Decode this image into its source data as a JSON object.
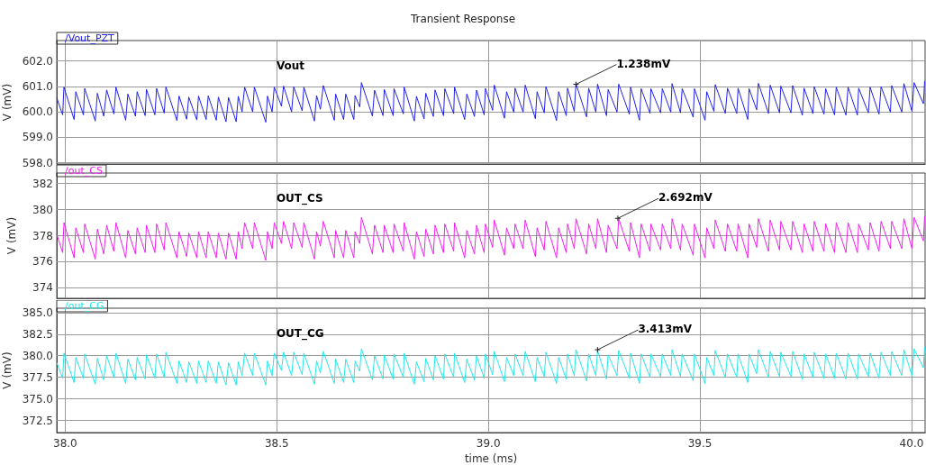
{
  "chart_data": [
    {
      "type": "line",
      "title": "Transient Response",
      "ylabel": "V (mV)",
      "legend": "top left",
      "grid": true,
      "marker": "none",
      "tick_labels": "y",
      "xlim": [
        37.98,
        40.032
      ],
      "ylim": [
        597.95,
        602.8
      ],
      "yticks": [
        {
          "value": 598,
          "label": "598.0"
        },
        {
          "value": 599,
          "label": "599.0"
        },
        {
          "value": 600,
          "label": "600.0"
        },
        {
          "value": 601,
          "label": "601.0"
        },
        {
          "value": 602,
          "label": "602.0"
        }
      ],
      "annotations": [
        "Vout",
        {
          "text": "1.238mV",
          "x": 39.207,
          "y": 601.08
        }
      ],
      "x": [
        37.98,
        37.994,
        37.997,
        38.021,
        38.025,
        38.043,
        38.046,
        38.071,
        38.076,
        38.091,
        38.098,
        38.115,
        38.12,
        38.143,
        38.148,
        38.166,
        38.17,
        38.189,
        38.192,
        38.212,
        38.216,
        38.234,
        38.238,
        38.264,
        38.269,
        38.287,
        38.292,
        38.311,
        38.315,
        38.333,
        38.338,
        38.357,
        38.362,
        38.38,
        38.386,
        38.404,
        38.409,
        38.418,
        38.424,
        38.443,
        38.447,
        38.474,
        38.478,
        38.489,
        38.494,
        38.511,
        38.516,
        38.535,
        38.54,
        38.56,
        38.564,
        38.589,
        38.594,
        38.603,
        38.61,
        38.636,
        38.639,
        38.658,
        38.663,
        38.682,
        38.685,
        38.696,
        38.7,
        38.726,
        38.731,
        38.751,
        38.754,
        38.775,
        38.777,
        38.799,
        38.801,
        38.825,
        38.83,
        38.848,
        38.852,
        38.87,
        38.874,
        38.894,
        38.897,
        38.918,
        38.92,
        38.944,
        38.949,
        38.967,
        38.972,
        38.99,
        38.993,
        39.01,
        39.014,
        39.038,
        39.043,
        39.06,
        39.063,
        39.082,
        39.087,
        39.111,
        39.115,
        39.132,
        39.136,
        39.161,
        39.166,
        39.184,
        39.187,
        39.203,
        39.207,
        39.232,
        39.237,
        39.254,
        39.258,
        39.279,
        39.283,
        39.304,
        39.308,
        39.333,
        39.336,
        39.357,
        39.361,
        39.382,
        39.384,
        39.407,
        39.411,
        39.431,
        39.434,
        39.454,
        39.458,
        39.484,
        39.487,
        39.512,
        39.516,
        39.533,
        39.536,
        39.56,
        39.565,
        39.587,
        39.59,
        39.613,
        39.616,
        39.634,
        39.638,
        39.662,
        39.666,
        39.688,
        39.691,
        39.715,
        39.719,
        39.742,
        39.746,
        39.767,
        39.77,
        39.793,
        39.797,
        39.818,
        39.822,
        39.845,
        39.85,
        39.872,
        39.875,
        39.898,
        39.902,
        39.923,
        39.928,
        39.95,
        39.953,
        39.977,
        39.982,
        40.001,
        40.006,
        40.028,
        40.031
      ],
      "series": [
        {
          "name": "/Vout_PZT",
          "color": "#2020ee",
          "values": [
            600.55,
            599.88,
            600.97,
            599.7,
            600.79,
            599.88,
            600.92,
            599.64,
            600.73,
            599.83,
            600.86,
            599.92,
            600.97,
            599.67,
            600.7,
            599.83,
            600.79,
            599.85,
            600.88,
            599.88,
            600.92,
            599.95,
            600.98,
            599.66,
            600.62,
            599.71,
            600.58,
            599.68,
            600.62,
            599.7,
            600.63,
            599.67,
            600.58,
            599.61,
            600.56,
            599.61,
            600.61,
            600.0,
            600.97,
            600.0,
            600.97,
            599.59,
            600.62,
            600.0,
            600.97,
            600.22,
            601.01,
            600.0,
            600.98,
            600.04,
            600.97,
            599.64,
            600.64,
            600.1,
            601.03,
            599.67,
            600.7,
            599.7,
            600.7,
            599.7,
            600.64,
            600.19,
            601.15,
            599.83,
            600.85,
            599.85,
            600.88,
            599.85,
            600.91,
            599.92,
            600.97,
            599.64,
            600.61,
            599.73,
            600.73,
            599.82,
            600.86,
            599.85,
            600.91,
            599.93,
            600.97,
            599.7,
            600.7,
            599.82,
            600.85,
            599.88,
            600.92,
            600.06,
            601.05,
            599.75,
            600.79,
            599.99,
            600.93,
            599.99,
            601.05,
            599.73,
            600.79,
            599.96,
            600.99,
            599.66,
            600.79,
            599.85,
            600.93,
            600.02,
            601.11,
            599.8,
            600.93,
            599.99,
            601.09,
            599.85,
            600.88,
            599.99,
            601.09,
            599.91,
            600.97,
            599.67,
            600.91,
            599.94,
            600.91,
            599.96,
            600.91,
            599.99,
            601.11,
            599.96,
            600.91,
            599.79,
            600.91,
            599.67,
            600.79,
            600.02,
            601.07,
            599.94,
            600.93,
            599.94,
            600.93,
            599.7,
            600.91,
            600.08,
            601.12,
            599.94,
            601.05,
            599.96,
            601.01,
            599.96,
            601.03,
            599.87,
            600.93,
            599.93,
            600.99,
            599.91,
            600.91,
            599.88,
            600.97,
            599.87,
            600.97,
            599.87,
            600.93,
            599.96,
            600.97,
            599.91,
            600.99,
            599.99,
            601.03,
            599.99,
            601.11,
            600.02,
            601.15,
            600.32,
            601.21
          ]
        }
      ]
    },
    {
      "type": "line",
      "ylabel": "V (mV)",
      "legend": "top left",
      "grid": true,
      "marker": "none",
      "tick_labels": "y",
      "xlim": [
        37.98,
        40.032
      ],
      "ylim": [
        373.2,
        382.8
      ],
      "yticks": [
        374,
        376,
        378,
        380,
        382
      ],
      "annotations": [
        "OUT_CS",
        {
          "text": "2.692mV",
          "x": 39.306,
          "y": 379.33
        }
      ],
      "x": [
        37.98,
        37.994,
        37.997,
        38.021,
        38.025,
        38.043,
        38.046,
        38.071,
        38.076,
        38.091,
        38.098,
        38.115,
        38.12,
        38.143,
        38.148,
        38.166,
        38.17,
        38.189,
        38.192,
        38.212,
        38.216,
        38.234,
        38.238,
        38.264,
        38.269,
        38.287,
        38.292,
        38.311,
        38.315,
        38.333,
        38.338,
        38.357,
        38.362,
        38.38,
        38.386,
        38.404,
        38.409,
        38.418,
        38.424,
        38.443,
        38.447,
        38.474,
        38.478,
        38.489,
        38.494,
        38.511,
        38.516,
        38.535,
        38.54,
        38.56,
        38.564,
        38.589,
        38.594,
        38.603,
        38.61,
        38.636,
        38.639,
        38.658,
        38.663,
        38.682,
        38.685,
        38.696,
        38.7,
        38.726,
        38.731,
        38.751,
        38.754,
        38.775,
        38.777,
        38.799,
        38.801,
        38.825,
        38.83,
        38.848,
        38.852,
        38.87,
        38.874,
        38.894,
        38.897,
        38.918,
        38.92,
        38.944,
        38.949,
        38.967,
        38.972,
        38.99,
        38.993,
        39.01,
        39.014,
        39.038,
        39.043,
        39.06,
        39.063,
        39.082,
        39.087,
        39.111,
        39.115,
        39.132,
        39.136,
        39.161,
        39.166,
        39.184,
        39.187,
        39.203,
        39.207,
        39.232,
        39.237,
        39.254,
        39.258,
        39.279,
        39.283,
        39.304,
        39.308,
        39.333,
        39.336,
        39.357,
        39.361,
        39.382,
        39.384,
        39.407,
        39.411,
        39.431,
        39.434,
        39.454,
        39.458,
        39.484,
        39.487,
        39.512,
        39.516,
        39.533,
        39.536,
        39.56,
        39.565,
        39.587,
        39.59,
        39.613,
        39.616,
        39.634,
        39.638,
        39.662,
        39.666,
        39.688,
        39.691,
        39.715,
        39.719,
        39.742,
        39.746,
        39.767,
        39.77,
        39.793,
        39.797,
        39.818,
        39.822,
        39.845,
        39.85,
        39.872,
        39.875,
        39.898,
        39.902,
        39.923,
        39.928,
        39.95,
        39.953,
        39.977,
        39.982,
        40.001,
        40.006,
        40.028,
        40.031
      ],
      "series": [
        {
          "name": "/out_CS",
          "color": "#f020f0",
          "values": [
            378.1,
            376.7,
            379.0,
            376.3,
            378.6,
            376.7,
            378.9,
            376.2,
            378.5,
            376.6,
            378.8,
            376.8,
            379.0,
            376.3,
            378.4,
            376.6,
            378.6,
            376.7,
            378.8,
            376.7,
            378.9,
            376.9,
            379.0,
            376.3,
            378.3,
            376.4,
            378.2,
            376.3,
            378.3,
            376.3,
            378.3,
            376.3,
            378.2,
            376.2,
            378.2,
            376.2,
            378.3,
            377.0,
            379.0,
            377.0,
            379.0,
            376.1,
            378.3,
            377.0,
            379.0,
            377.4,
            379.1,
            377.0,
            379.0,
            377.1,
            379.0,
            376.2,
            378.3,
            377.2,
            379.1,
            376.3,
            378.4,
            376.3,
            378.4,
            376.3,
            378.3,
            377.4,
            379.4,
            376.6,
            378.8,
            376.7,
            378.8,
            376.7,
            378.9,
            376.8,
            379.0,
            376.2,
            378.3,
            376.4,
            378.5,
            376.6,
            378.8,
            376.7,
            378.9,
            376.8,
            379.0,
            376.3,
            378.4,
            376.6,
            378.8,
            376.7,
            378.9,
            377.1,
            379.2,
            376.5,
            378.6,
            377.0,
            378.9,
            377.0,
            379.2,
            376.4,
            378.6,
            376.9,
            379.1,
            376.3,
            378.6,
            376.7,
            378.9,
            377.0,
            379.3,
            376.6,
            378.9,
            377.0,
            379.3,
            376.7,
            378.8,
            377.0,
            379.3,
            376.8,
            379.0,
            376.3,
            378.9,
            376.8,
            378.9,
            376.9,
            378.9,
            377.0,
            379.3,
            376.9,
            378.9,
            376.5,
            378.9,
            376.3,
            378.6,
            377.0,
            379.2,
            376.8,
            378.9,
            376.8,
            378.9,
            376.3,
            378.9,
            377.1,
            379.3,
            376.8,
            379.2,
            376.9,
            379.1,
            376.9,
            379.1,
            376.7,
            378.9,
            376.8,
            379.1,
            376.8,
            378.9,
            376.7,
            379.0,
            376.7,
            379.0,
            376.7,
            378.9,
            376.9,
            379.0,
            376.8,
            379.1,
            377.0,
            379.1,
            377.0,
            379.3,
            377.0,
            379.4,
            377.6,
            379.5
          ]
        }
      ]
    },
    {
      "type": "line",
      "xlabel": "time (ms)",
      "ylabel": "V (mV)",
      "legend": "top left",
      "grid": true,
      "marker": "none",
      "xlim": [
        37.98,
        40.032
      ],
      "xticks": [
        {
          "value": 38,
          "label": "38.0"
        },
        38.5,
        {
          "value": 39,
          "label": "39.0"
        },
        39.5,
        {
          "value": 40,
          "label": "40.0"
        }
      ],
      "ylim": [
        371.1,
        385.5
      ],
      "yticks": [
        372.5,
        {
          "value": 375,
          "label": "375.0"
        },
        377.5,
        {
          "value": 380,
          "label": "380.0"
        },
        382.5,
        {
          "value": 385,
          "label": "385.0"
        }
      ],
      "annotations": [
        "OUT_CG",
        {
          "text": "3.413mV",
          "x": 39.258,
          "y": 380.69
        }
      ],
      "x": [
        37.98,
        37.994,
        37.997,
        38.021,
        38.025,
        38.043,
        38.046,
        38.071,
        38.076,
        38.091,
        38.098,
        38.115,
        38.12,
        38.143,
        38.148,
        38.166,
        38.17,
        38.189,
        38.192,
        38.212,
        38.216,
        38.234,
        38.238,
        38.264,
        38.269,
        38.287,
        38.292,
        38.311,
        38.315,
        38.333,
        38.338,
        38.357,
        38.362,
        38.38,
        38.386,
        38.404,
        38.409,
        38.418,
        38.424,
        38.443,
        38.447,
        38.474,
        38.478,
        38.489,
        38.494,
        38.511,
        38.516,
        38.535,
        38.54,
        38.56,
        38.564,
        38.589,
        38.594,
        38.603,
        38.61,
        38.636,
        38.639,
        38.658,
        38.663,
        38.682,
        38.685,
        38.696,
        38.7,
        38.726,
        38.731,
        38.751,
        38.754,
        38.775,
        38.777,
        38.799,
        38.801,
        38.825,
        38.83,
        38.848,
        38.852,
        38.87,
        38.874,
        38.894,
        38.897,
        38.918,
        38.92,
        38.944,
        38.949,
        38.967,
        38.972,
        38.99,
        38.993,
        39.01,
        39.014,
        39.038,
        39.043,
        39.06,
        39.063,
        39.082,
        39.087,
        39.111,
        39.115,
        39.132,
        39.136,
        39.161,
        39.166,
        39.184,
        39.187,
        39.203,
        39.207,
        39.232,
        39.237,
        39.254,
        39.258,
        39.279,
        39.283,
        39.304,
        39.308,
        39.333,
        39.336,
        39.357,
        39.361,
        39.382,
        39.384,
        39.407,
        39.411,
        39.431,
        39.434,
        39.454,
        39.458,
        39.484,
        39.487,
        39.512,
        39.516,
        39.533,
        39.536,
        39.56,
        39.565,
        39.587,
        39.59,
        39.613,
        39.616,
        39.634,
        39.638,
        39.662,
        39.666,
        39.688,
        39.691,
        39.715,
        39.719,
        39.742,
        39.746,
        39.767,
        39.77,
        39.793,
        39.797,
        39.818,
        39.822,
        39.845,
        39.85,
        39.872,
        39.875,
        39.898,
        39.902,
        39.923,
        39.928,
        39.95,
        39.953,
        39.977,
        39.982,
        40.001,
        40.006,
        40.028,
        40.031
      ],
      "series": [
        {
          "name": "/out_CG",
          "color": "#22e8e8",
          "values": [
            379.2,
            377.4,
            380.3,
            376.9,
            379.8,
            377.4,
            380.2,
            376.7,
            379.7,
            377.2,
            380.0,
            377.5,
            380.3,
            376.8,
            379.6,
            377.2,
            379.8,
            377.3,
            380.1,
            377.4,
            380.2,
            377.5,
            380.4,
            376.8,
            379.4,
            376.9,
            379.3,
            376.8,
            379.4,
            376.9,
            379.4,
            376.8,
            379.3,
            376.6,
            379.2,
            376.6,
            379.3,
            377.7,
            380.3,
            377.7,
            380.3,
            376.6,
            379.4,
            377.7,
            380.3,
            378.3,
            380.4,
            377.7,
            380.4,
            377.8,
            380.3,
            376.7,
            379.4,
            378.0,
            380.5,
            376.8,
            379.6,
            376.9,
            379.6,
            376.9,
            379.4,
            378.2,
            380.8,
            377.2,
            380.0,
            377.3,
            380.1,
            377.3,
            380.2,
            377.5,
            380.3,
            376.7,
            379.3,
            377.0,
            379.7,
            377.2,
            380.0,
            377.3,
            380.2,
            377.5,
            380.3,
            376.9,
            379.6,
            377.2,
            380.0,
            377.4,
            380.2,
            377.8,
            380.5,
            377.0,
            379.8,
            377.7,
            380.2,
            377.7,
            380.5,
            377.0,
            379.8,
            377.6,
            380.4,
            376.8,
            379.8,
            377.3,
            380.2,
            377.7,
            380.7,
            377.1,
            380.2,
            377.7,
            380.6,
            377.3,
            380.1,
            377.7,
            380.6,
            377.4,
            380.3,
            376.8,
            380.2,
            377.5,
            380.2,
            377.6,
            380.2,
            377.7,
            380.7,
            377.6,
            380.2,
            377.1,
            380.2,
            376.8,
            379.8,
            377.7,
            380.6,
            377.5,
            380.2,
            377.5,
            380.2,
            376.9,
            380.2,
            377.9,
            380.7,
            377.5,
            380.5,
            377.6,
            380.4,
            377.6,
            380.5,
            377.3,
            380.2,
            377.5,
            380.4,
            377.4,
            380.2,
            377.4,
            380.3,
            377.3,
            380.3,
            377.3,
            380.2,
            377.6,
            380.3,
            377.4,
            380.4,
            377.7,
            380.5,
            377.7,
            380.7,
            377.7,
            380.8,
            378.6,
            381.0
          ]
        }
      ]
    }
  ]
}
